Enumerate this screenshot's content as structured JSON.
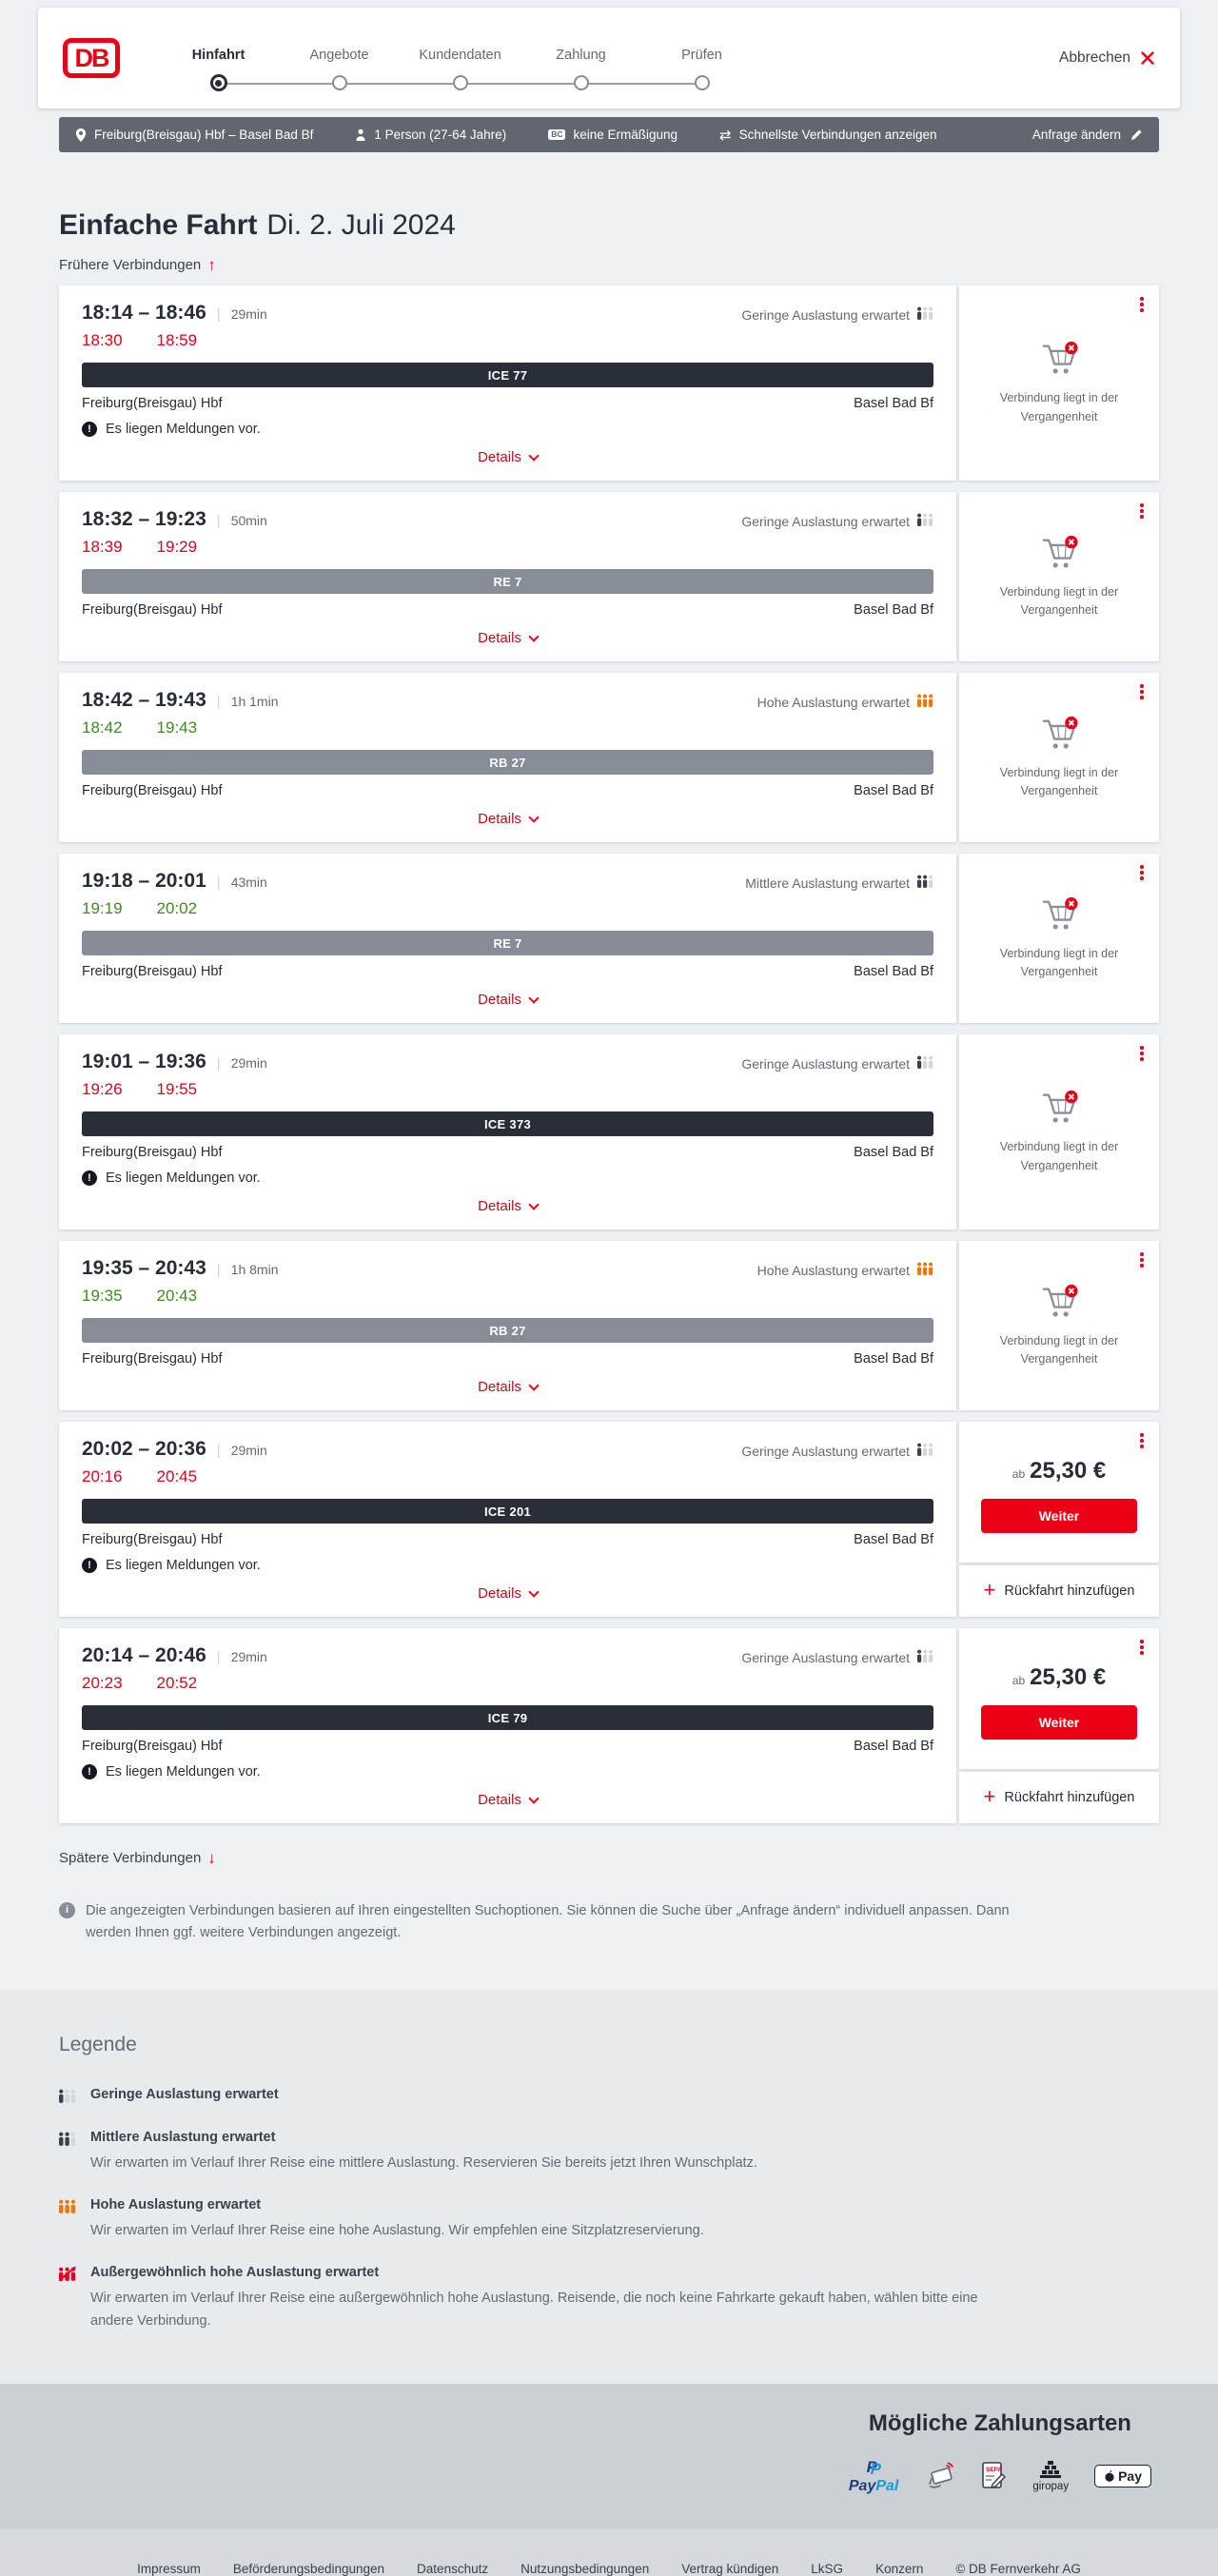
{
  "header": {
    "logo_text": "DB",
    "steps": [
      {
        "label": "Hinfahrt",
        "state": "active"
      },
      {
        "label": "Angebote",
        "state": "upcoming"
      },
      {
        "label": "Kundendaten",
        "state": "upcoming"
      },
      {
        "label": "Zahlung",
        "state": "upcoming"
      },
      {
        "label": "Prüfen",
        "state": "upcoming"
      }
    ],
    "cancel_label": "Abbrechen"
  },
  "summary_bar": {
    "items": [
      {
        "icon": "location-pin-icon",
        "text": "Freiburg(Breisgau) Hbf – Basel Bad Bf"
      },
      {
        "icon": "person-icon",
        "text": "1 Person (27-64 Jahre)"
      },
      {
        "icon": "bahncard-icon",
        "text": "keine Ermäßigung"
      },
      {
        "icon": "swap-arrows-icon",
        "text": "Schnellste Verbindungen anzeigen"
      }
    ],
    "edit_label": "Anfrage ändern"
  },
  "page": {
    "title": "Einfache Fahrt",
    "date": "Di. 2. Juli 2024",
    "earlier_link": "Frühere Verbindungen",
    "later_link": "Spätere Verbindungen",
    "info_note": "Die angezeigten Verbindungen basieren auf Ihren eingestellten Suchoptionen. Sie können die Suche über „Anfrage ändern“ individuell anpassen. Dann werden Ihnen ggf. weitere Verbindungen angezeigt."
  },
  "connections": [
    {
      "time_range": "18:14 – 18:46",
      "duration": "29min",
      "realtime_departure": "18:30",
      "realtime_arrival": "18:59",
      "realtime_status": "delayed",
      "train": "ICE 77",
      "train_type": "ice",
      "from": "Freiburg(Breisgau) Hbf",
      "to": "Basel Bad Bf",
      "messages_label": "Es liegen Meldungen vor.",
      "occupancy_label": "Geringe Auslastung erwartet",
      "occupancy_level": "low",
      "details_label": "Details",
      "side": {
        "type": "past",
        "text": "Verbindung liegt in der Vergangenheit"
      }
    },
    {
      "time_range": "18:32 – 19:23",
      "duration": "50min",
      "realtime_departure": "18:39",
      "realtime_arrival": "19:29",
      "realtime_status": "delayed",
      "train": "RE 7",
      "train_type": "regional",
      "from": "Freiburg(Breisgau) Hbf",
      "to": "Basel Bad Bf",
      "messages_label": null,
      "occupancy_label": "Geringe Auslastung erwartet",
      "occupancy_level": "low",
      "details_label": "Details",
      "side": {
        "type": "past",
        "text": "Verbindung liegt in der Vergangenheit"
      }
    },
    {
      "time_range": "18:42 – 19:43",
      "duration": "1h 1min",
      "realtime_departure": "18:42",
      "realtime_arrival": "19:43",
      "realtime_status": "ontime",
      "train": "RB 27",
      "train_type": "regional",
      "from": "Freiburg(Breisgau) Hbf",
      "to": "Basel Bad Bf",
      "messages_label": null,
      "occupancy_label": "Hohe Auslastung erwartet",
      "occupancy_level": "high",
      "details_label": "Details",
      "side": {
        "type": "past",
        "text": "Verbindung liegt in der Vergangenheit"
      }
    },
    {
      "time_range": "19:18 – 20:01",
      "duration": "43min",
      "realtime_departure": "19:19",
      "realtime_arrival": "20:02",
      "realtime_status": "ontime",
      "train": "RE 7",
      "train_type": "regional",
      "from": "Freiburg(Breisgau) Hbf",
      "to": "Basel Bad Bf",
      "messages_label": null,
      "occupancy_label": "Mittlere Auslastung erwartet",
      "occupancy_level": "medium",
      "details_label": "Details",
      "side": {
        "type": "past",
        "text": "Verbindung liegt in der Vergangenheit"
      }
    },
    {
      "time_range": "19:01 – 19:36",
      "duration": "29min",
      "realtime_departure": "19:26",
      "realtime_arrival": "19:55",
      "realtime_status": "delayed",
      "train": "ICE 373",
      "train_type": "ice",
      "from": "Freiburg(Breisgau) Hbf",
      "to": "Basel Bad Bf",
      "messages_label": "Es liegen Meldungen vor.",
      "occupancy_label": "Geringe Auslastung erwartet",
      "occupancy_level": "low",
      "details_label": "Details",
      "side": {
        "type": "past",
        "text": "Verbindung liegt in der Vergangenheit"
      }
    },
    {
      "time_range": "19:35 – 20:43",
      "duration": "1h 8min",
      "realtime_departure": "19:35",
      "realtime_arrival": "20:43",
      "realtime_status": "ontime",
      "train": "RB 27",
      "train_type": "regional",
      "from": "Freiburg(Breisgau) Hbf",
      "to": "Basel Bad Bf",
      "messages_label": null,
      "occupancy_label": "Hohe Auslastung erwartet",
      "occupancy_level": "high",
      "details_label": "Details",
      "side": {
        "type": "past",
        "text": "Verbindung liegt in der Vergangenheit"
      }
    },
    {
      "time_range": "20:02 – 20:36",
      "duration": "29min",
      "realtime_departure": "20:16",
      "realtime_arrival": "20:45",
      "realtime_status": "delayed",
      "train": "ICE 201",
      "train_type": "ice",
      "from": "Freiburg(Breisgau) Hbf",
      "to": "Basel Bad Bf",
      "messages_label": "Es liegen Meldungen vor.",
      "occupancy_label": "Geringe Auslastung erwartet",
      "occupancy_level": "low",
      "details_label": "Details",
      "side": {
        "type": "bookable",
        "price_prefix": "ab",
        "price": "25,30 €",
        "button_label": "Weiter",
        "return_label": "Rückfahrt hinzufügen"
      }
    },
    {
      "time_range": "20:14 – 20:46",
      "duration": "29min",
      "realtime_departure": "20:23",
      "realtime_arrival": "20:52",
      "realtime_status": "delayed",
      "train": "ICE 79",
      "train_type": "ice",
      "from": "Freiburg(Breisgau) Hbf",
      "to": "Basel Bad Bf",
      "messages_label": "Es liegen Meldungen vor.",
      "occupancy_label": "Geringe Auslastung erwartet",
      "occupancy_level": "low",
      "details_label": "Details",
      "side": {
        "type": "bookable",
        "price_prefix": "ab",
        "price": "25,30 €",
        "button_label": "Weiter",
        "return_label": "Rückfahrt hinzufügen"
      }
    }
  ],
  "legend": {
    "title": "Legende",
    "items": [
      {
        "level": "low",
        "title": "Geringe Auslastung erwartet",
        "desc": null
      },
      {
        "level": "medium",
        "title": "Mittlere Auslastung erwartet",
        "desc": "Wir erwarten im Verlauf Ihrer Reise eine mittlere Auslastung. Reservieren Sie bereits jetzt Ihren Wunschplatz."
      },
      {
        "level": "high",
        "title": "Hohe Auslastung erwartet",
        "desc": "Wir erwarten im Verlauf Ihrer Reise eine hohe Auslastung. Wir empfehlen eine Sitzplatzreservierung."
      },
      {
        "level": "exceptional",
        "title": "Außergewöhnlich hohe Auslastung erwartet",
        "desc": "Wir erwarten im Verlauf Ihrer Reise eine außergewöhnlich hohe Auslastung. Reisende, die noch keine Fahrkarte gekauft haben, wählen bitte eine andere Verbindung."
      }
    ]
  },
  "payment": {
    "title": "Mögliche Zahlungsarten",
    "paypal_pay": "Pay",
    "paypal_pal": "Pal",
    "giropay_label": "giropay",
    "applepay_label": "Pay",
    "sepa_label": "SEPA"
  },
  "footer": {
    "links": [
      "Impressum",
      "Beförderungsbedingungen",
      "Datenschutz",
      "Nutzungsbedingungen",
      "Vertrag kündigen",
      "LkSG",
      "Konzern"
    ],
    "copyright": "© DB Fernverkehr AG"
  },
  "colors": {
    "brand_red": "#ec0016",
    "dark": "#282d37",
    "gray": "#646973",
    "green": "#3f8b1f",
    "orange": "#f07800"
  }
}
